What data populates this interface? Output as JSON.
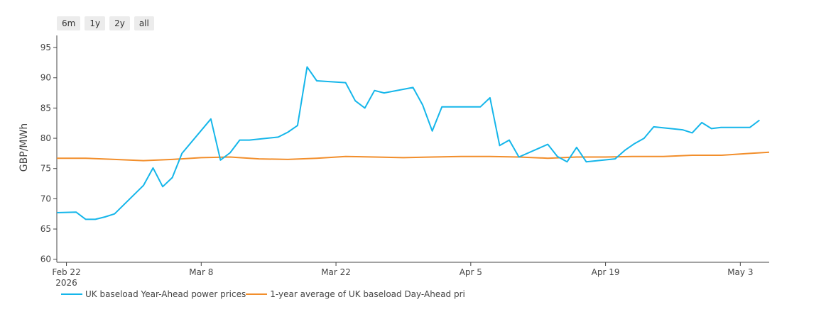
{
  "range_buttons": [
    "6m",
    "1y",
    "2y",
    "all"
  ],
  "colors": {
    "series_1": "#15b6ea",
    "series_2": "#f28e2b",
    "axis": "#444444"
  },
  "chart_data": {
    "type": "line",
    "title": "",
    "xlabel": "",
    "ylabel": "GBP/MWh",
    "ylim": [
      59.5,
      97
    ],
    "xlim": [
      "2026-02-21",
      "2026-05-06"
    ],
    "yticks": [
      60,
      65,
      70,
      75,
      80,
      85,
      90,
      95
    ],
    "xticks": [
      {
        "date": "2026-02-22",
        "label": "Feb 22",
        "sublabel": "2026"
      },
      {
        "date": "2026-03-08",
        "label": "Mar 8",
        "sublabel": ""
      },
      {
        "date": "2026-03-22",
        "label": "Mar 22",
        "sublabel": ""
      },
      {
        "date": "2026-04-05",
        "label": "Apr 5",
        "sublabel": ""
      },
      {
        "date": "2026-04-19",
        "label": "Apr 19",
        "sublabel": ""
      },
      {
        "date": "2026-05-03",
        "label": "May 3",
        "sublabel": ""
      }
    ],
    "grid": false,
    "legend_position": "bottom-left",
    "series": [
      {
        "name": "UK baseload Year-Ahead power prices",
        "color": "#15b6ea",
        "x": [
          "2026-02-21",
          "2026-02-23",
          "2026-02-24",
          "2026-02-25",
          "2026-02-26",
          "2026-02-27",
          "2026-03-02",
          "2026-03-03",
          "2026-03-04",
          "2026-03-05",
          "2026-03-06",
          "2026-03-09",
          "2026-03-10",
          "2026-03-11",
          "2026-03-12",
          "2026-03-13",
          "2026-03-16",
          "2026-03-17",
          "2026-03-18",
          "2026-03-19",
          "2026-03-20",
          "2026-03-23",
          "2026-03-24",
          "2026-03-25",
          "2026-03-26",
          "2026-03-27",
          "2026-03-30",
          "2026-03-31",
          "2026-04-01",
          "2026-04-02",
          "2026-04-06",
          "2026-04-07",
          "2026-04-08",
          "2026-04-09",
          "2026-04-10",
          "2026-04-13",
          "2026-04-14",
          "2026-04-15",
          "2026-04-16",
          "2026-04-17",
          "2026-04-20",
          "2026-04-21",
          "2026-04-22",
          "2026-04-23",
          "2026-04-24",
          "2026-04-27",
          "2026-04-28",
          "2026-04-29",
          "2026-04-30",
          "2026-05-01",
          "2026-05-04",
          "2026-05-05"
        ],
        "y": [
          67.7,
          67.8,
          66.6,
          66.6,
          67.0,
          67.5,
          72.2,
          75.1,
          72.0,
          73.5,
          77.5,
          83.2,
          76.4,
          77.6,
          79.7,
          79.7,
          80.2,
          81.0,
          82.1,
          91.8,
          89.5,
          89.2,
          86.2,
          85.0,
          87.9,
          87.5,
          88.4,
          85.5,
          81.2,
          85.2,
          85.2,
          86.7,
          78.8,
          79.7,
          76.9,
          79.0,
          77.0,
          76.1,
          78.5,
          76.1,
          76.6,
          78.0,
          79.1,
          80.0,
          81.9,
          81.4,
          80.9,
          82.6,
          81.6,
          81.8,
          81.8,
          83.0
        ]
      },
      {
        "name": "1-year average of UK baseload Day-Ahead pri",
        "color": "#f28e2b",
        "x": [
          "2026-02-21",
          "2026-02-24",
          "2026-02-27",
          "2026-03-02",
          "2026-03-05",
          "2026-03-08",
          "2026-03-11",
          "2026-03-14",
          "2026-03-17",
          "2026-03-20",
          "2026-03-23",
          "2026-03-26",
          "2026-03-29",
          "2026-04-01",
          "2026-04-04",
          "2026-04-07",
          "2026-04-10",
          "2026-04-13",
          "2026-04-16",
          "2026-04-19",
          "2026-04-22",
          "2026-04-25",
          "2026-04-28",
          "2026-05-01",
          "2026-05-04",
          "2026-05-06"
        ],
        "y": [
          76.7,
          76.7,
          76.5,
          76.3,
          76.5,
          76.8,
          76.9,
          76.6,
          76.5,
          76.7,
          77.0,
          76.9,
          76.8,
          76.9,
          77.0,
          77.0,
          76.9,
          76.7,
          76.9,
          76.9,
          77.0,
          77.0,
          77.2,
          77.2,
          77.5,
          77.7
        ]
      }
    ]
  }
}
